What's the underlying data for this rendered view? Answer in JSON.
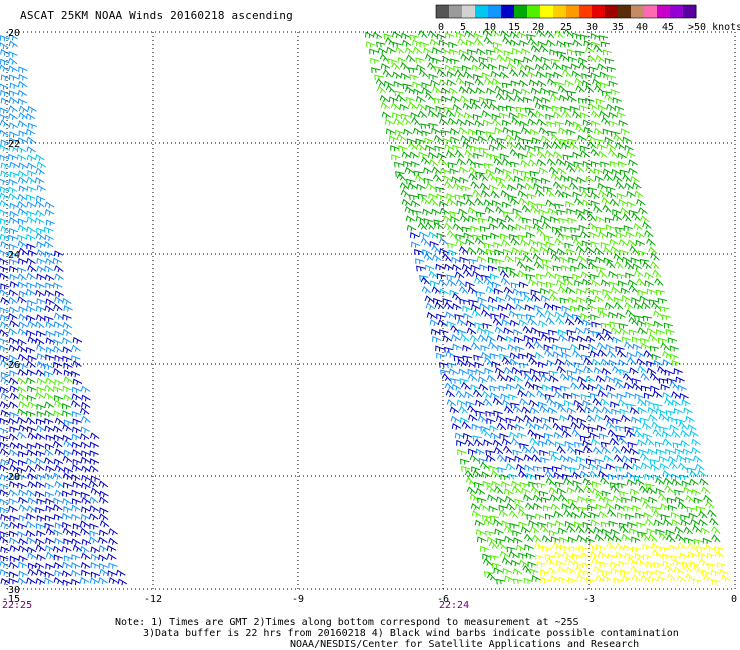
{
  "title": "ASCAT 25KM NOAA Winds 20160218 ascending",
  "legend": {
    "labels": [
      "0",
      "5",
      "10",
      "15",
      "20",
      "25",
      "30",
      "35",
      "40",
      "45",
      ">50 knots"
    ],
    "colors": [
      "#555555",
      "#9a9a9a",
      "#d2d2d2",
      "#00c8f0",
      "#1496ff",
      "#0000c8",
      "#00aa00",
      "#50f000",
      "#ffff00",
      "#ffcc00",
      "#ff9900",
      "#ff3c00",
      "#e60000",
      "#a00000",
      "#5a2d0a",
      "#c48c64",
      "#ff69b4",
      "#c800c8",
      "#9400d3",
      "#5a00a0"
    ]
  },
  "lat_labels": [
    "20",
    "22",
    "24",
    "26",
    "28",
    "30"
  ],
  "lon_labels": [
    "-15",
    "-12",
    "-9",
    "-6",
    "-3",
    "0"
  ],
  "times": {
    "left": "22:25",
    "middle": "22:24"
  },
  "notes": [
    "Note: 1) Times are GMT 2)Times along bottom correspond to measurement at ~25S",
    "3)Data buffer is 22 hrs from 20160218 4) Black wind barbs indicate possible contamination",
    "NOAA/NESDIS/Center for Satellite Applications and Research"
  ],
  "map_data": {
    "lat_range": [
      -30,
      -20
    ],
    "lon_range": [
      -15,
      0
    ],
    "wind_colors": {
      "lt10": "#1496ff",
      "10_15": "#0000c8",
      "15_20": "#00aa00",
      "20_25": "#50f000",
      "25_30": "#ffff00",
      "cyan": "#00c8f0"
    }
  }
}
